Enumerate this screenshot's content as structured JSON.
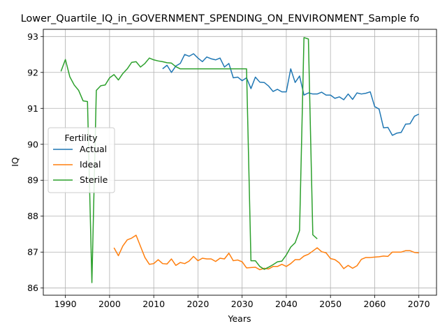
{
  "chart_data": {
    "type": "line",
    "title": "Lower_Quartile_IQ_in_GOVERNMENT_SPENDING_ON_ENVIRONMENT_Sample fo",
    "xlabel": "Years",
    "ylabel": "IQ",
    "xlim": [
      1985,
      2074
    ],
    "ylim": [
      85.8,
      93.2
    ],
    "xticks": [
      1990,
      2000,
      2010,
      2020,
      2030,
      2040,
      2050,
      2060,
      2070
    ],
    "yticks": [
      86,
      87,
      88,
      89,
      90,
      91,
      92,
      93
    ],
    "grid": true,
    "legend": {
      "title": "Fertility",
      "placement": "center-left"
    },
    "series": [
      {
        "name": "Actual",
        "color": "#1f77b4",
        "x": [
          2012,
          2013,
          2014,
          2015,
          2016,
          2017,
          2018,
          2019,
          2020,
          2021,
          2022,
          2023,
          2024,
          2025,
          2026,
          2027,
          2028,
          2029,
          2030,
          2031,
          2032,
          2033,
          2034,
          2035,
          2036,
          2037,
          2038,
          2039,
          2040,
          2041,
          2042,
          2043,
          2044,
          2045,
          2046,
          2047,
          2048,
          2049,
          2050,
          2051,
          2052,
          2053,
          2054,
          2055,
          2056,
          2057,
          2058,
          2059,
          2060,
          2061,
          2062,
          2063,
          2064,
          2065,
          2066,
          2067,
          2068,
          2069,
          2070
        ],
        "y": [
          92.1,
          92.2,
          92.0,
          92.18,
          92.25,
          92.5,
          92.45,
          92.52,
          92.4,
          92.3,
          92.43,
          92.38,
          92.35,
          92.4,
          92.15,
          92.25,
          91.85,
          91.87,
          91.77,
          91.85,
          91.55,
          91.87,
          91.73,
          91.72,
          91.62,
          91.47,
          91.53,
          91.46,
          91.46,
          92.1,
          91.72,
          91.9,
          91.37,
          91.43,
          91.4,
          91.4,
          91.45,
          91.37,
          91.37,
          91.28,
          91.32,
          91.24,
          91.4,
          91.25,
          91.43,
          91.4,
          91.42,
          91.46,
          91.05,
          90.98,
          90.46,
          90.47,
          90.25,
          90.31,
          90.33,
          90.56,
          90.57,
          90.78,
          90.84
        ]
      },
      {
        "name": "Ideal",
        "color": "#ff7f0e",
        "x": [
          2001,
          2002,
          2003,
          2004,
          2005,
          2006,
          2007,
          2008,
          2009,
          2010,
          2011,
          2012,
          2013,
          2014,
          2015,
          2016,
          2017,
          2018,
          2019,
          2020,
          2021,
          2022,
          2023,
          2024,
          2025,
          2026,
          2027,
          2028,
          2029,
          2030,
          2031,
          2032,
          2033,
          2034,
          2035,
          2036,
          2037,
          2038,
          2039,
          2040,
          2041,
          2042,
          2043,
          2044,
          2045,
          2046,
          2047,
          2048,
          2049,
          2050,
          2051,
          2052,
          2053,
          2054,
          2055,
          2056,
          2057,
          2058,
          2059,
          2060,
          2061,
          2062,
          2063,
          2064,
          2065,
          2066,
          2067,
          2068,
          2069,
          2070
        ],
        "y": [
          87.12,
          86.9,
          87.17,
          87.34,
          87.39,
          87.47,
          87.16,
          86.85,
          86.66,
          86.68,
          86.79,
          86.68,
          86.67,
          86.81,
          86.63,
          86.71,
          86.68,
          86.75,
          86.88,
          86.76,
          86.83,
          86.81,
          86.81,
          86.74,
          86.83,
          86.81,
          86.97,
          86.76,
          86.78,
          86.73,
          86.56,
          86.57,
          86.58,
          86.51,
          86.55,
          86.53,
          86.6,
          86.6,
          86.66,
          86.6,
          86.68,
          86.79,
          86.79,
          86.89,
          86.94,
          87.03,
          87.12,
          87.01,
          86.98,
          86.82,
          86.79,
          86.7,
          86.54,
          86.63,
          86.55,
          86.62,
          86.8,
          86.85,
          86.85,
          86.86,
          86.87,
          86.89,
          86.88,
          87.0,
          87.0,
          87.0,
          87.04,
          87.04,
          86.99,
          86.98
        ]
      },
      {
        "name": "Sterile",
        "color": "#2ca02c",
        "x": [
          1989,
          1990,
          1991,
          1992,
          1993,
          1994,
          1995,
          1996,
          1997,
          1998,
          1999,
          2000,
          2001,
          2002,
          2003,
          2004,
          2005,
          2006,
          2007,
          2008,
          2009,
          2010,
          2011,
          2012,
          2013,
          2014,
          2015,
          2016,
          2017,
          2018,
          2019,
          2020,
          2021,
          2022,
          2023,
          2024,
          2025,
          2026,
          2027,
          2028,
          2029,
          2030,
          2031,
          2032,
          2033,
          2034,
          2035,
          2036,
          2037,
          2038,
          2039,
          2040,
          2041,
          2042,
          2043,
          2044,
          2045,
          2046,
          2047
        ],
        "y": [
          92.03,
          92.36,
          91.88,
          91.65,
          91.5,
          91.21,
          91.19,
          86.15,
          91.5,
          91.63,
          91.65,
          91.85,
          91.94,
          91.79,
          91.97,
          92.1,
          92.28,
          92.3,
          92.15,
          92.25,
          92.4,
          92.35,
          92.32,
          92.3,
          92.27,
          92.26,
          92.16,
          92.1,
          92.1,
          92.1,
          92.1,
          92.1,
          92.1,
          92.1,
          92.1,
          92.1,
          92.1,
          92.1,
          92.1,
          92.1,
          92.1,
          92.1,
          92.1,
          86.76,
          86.76,
          86.6,
          86.52,
          86.58,
          86.65,
          86.73,
          86.75,
          86.92,
          87.14,
          87.26,
          87.6,
          92.97,
          92.93,
          87.48,
          87.37
        ]
      }
    ]
  }
}
